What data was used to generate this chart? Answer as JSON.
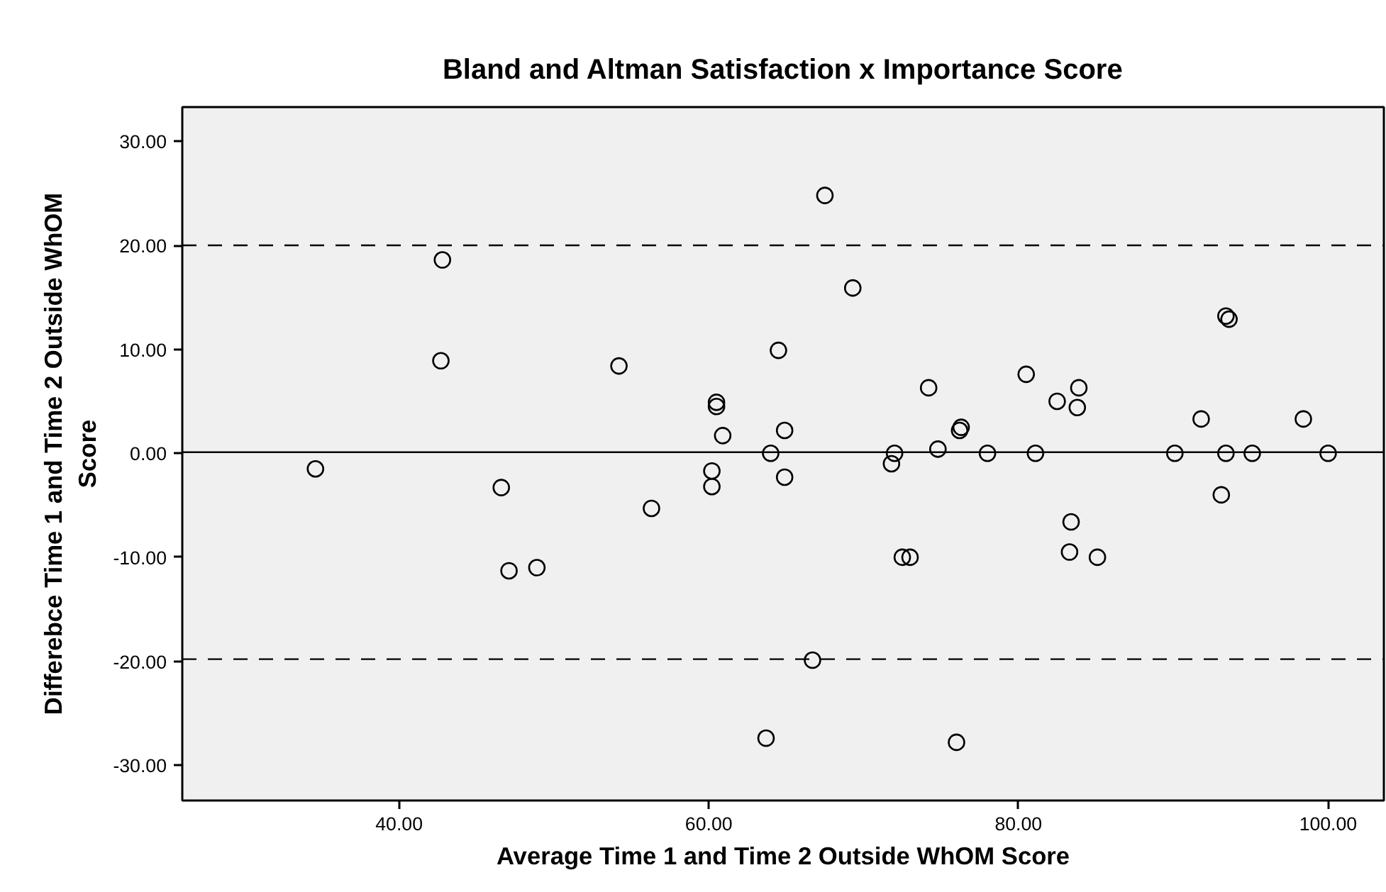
{
  "chart_data": {
    "type": "scatter",
    "title": "Bland and Altman Satisfaction x Importance Score",
    "xlabel": "Average Time 1 and Time 2 Outside WhOM Score",
    "ylabel": "Differebce Time 1 and Time 2 Outside WhOM\nScore",
    "marker": "circle",
    "grid": false,
    "xlim": [
      26,
      103.6
    ],
    "ylim": [
      -33.4,
      33.3
    ],
    "xticks": [
      {
        "value": 40,
        "label": "40.00"
      },
      {
        "value": 60,
        "label": "60.00"
      },
      {
        "value": 80,
        "label": "80.00"
      },
      {
        "value": 100,
        "label": "100.00"
      }
    ],
    "yticks": [
      {
        "value": -30,
        "label": "-30.00"
      },
      {
        "value": -20,
        "label": "-20.00"
      },
      {
        "value": -10,
        "label": "-10.00"
      },
      {
        "value": 0,
        "label": "0.00"
      },
      {
        "value": 10,
        "label": "10.00"
      },
      {
        "value": 20,
        "label": "20.00"
      },
      {
        "value": 30,
        "label": "30.00"
      }
    ],
    "ref_lines": [
      {
        "axis": "y",
        "value": 20.0,
        "line_style": "dashed",
        "color": "#000000"
      },
      {
        "axis": "y",
        "value": 0.1,
        "line_style": "solid",
        "color": "#000000"
      },
      {
        "axis": "y",
        "value": -19.8,
        "line_style": "dashed",
        "color": "#000000"
      }
    ],
    "series": [
      {
        "color": "#000000",
        "x": [
          34.6,
          42.8,
          42.7,
          46.6,
          47.1,
          48.9,
          54.2,
          56.3,
          60.2,
          60.2,
          60.5,
          60.5,
          60.9,
          64.0,
          64.5,
          64.9,
          64.9,
          63.7,
          66.7,
          67.5,
          69.3,
          71.8,
          72.0,
          72.5,
          73.0,
          74.2,
          74.8,
          76.2,
          76.3,
          76.0,
          78.0,
          80.5,
          81.1,
          82.5,
          83.9,
          83.8,
          83.4,
          83.3,
          85.1,
          90.1,
          91.8,
          93.1,
          93.4,
          93.6,
          93.4,
          95.1,
          98.4,
          100.0
        ],
        "values": [
          -1.5,
          18.6,
          8.9,
          -3.3,
          -11.3,
          -11.0,
          8.4,
          -5.3,
          -1.7,
          -3.2,
          4.9,
          4.5,
          1.7,
          0,
          9.9,
          2.2,
          -2.3,
          -27.4,
          -19.9,
          24.8,
          15.9,
          -1.0,
          0,
          -10.0,
          -10.0,
          6.3,
          0.4,
          2.2,
          2.5,
          -27.8,
          0,
          7.6,
          0,
          5.0,
          6.3,
          4.4,
          -6.6,
          -9.5,
          -10.0,
          0,
          3.3,
          -4.0,
          13.2,
          12.9,
          0,
          0,
          3.3,
          0
        ]
      }
    ]
  }
}
